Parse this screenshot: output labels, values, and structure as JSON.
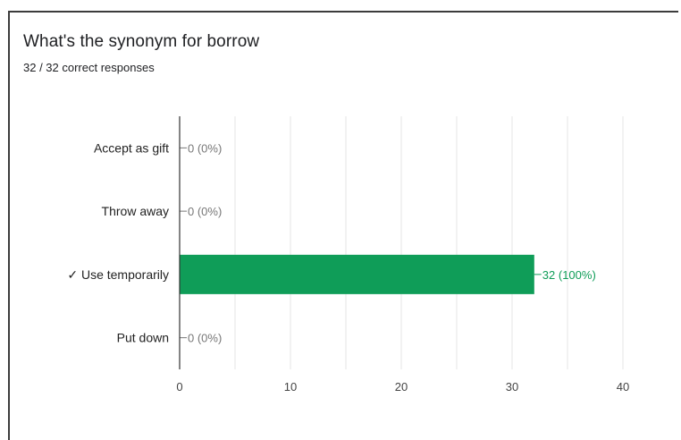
{
  "question": {
    "title": "What's the synonym for borrow",
    "summary": "32 / 32 correct responses"
  },
  "colors": {
    "bar": "#0f9d58",
    "correct_label": "#0f9d58",
    "zero_label": "#777777",
    "grid": "#e4e4e4",
    "axis": "#333333"
  },
  "chart_data": {
    "type": "bar",
    "orientation": "horizontal",
    "categories": [
      "Accept as gift",
      "Throw away",
      "Use temporarily",
      "Put down"
    ],
    "category_labels": [
      "Accept as gift",
      "Throw away",
      "✓ Use temporarily",
      "Put down"
    ],
    "correct": [
      false,
      false,
      true,
      false
    ],
    "values": [
      0,
      0,
      32,
      0
    ],
    "data_labels": [
      "0 (0%)",
      "0 (0%)",
      "32 (100%)",
      "0 (0%)"
    ],
    "xlim": [
      0,
      40
    ],
    "xticks": [
      0,
      10,
      20,
      30,
      40
    ],
    "grid": true,
    "title": "What's the synonym for borrow",
    "xlabel": "",
    "ylabel": ""
  }
}
